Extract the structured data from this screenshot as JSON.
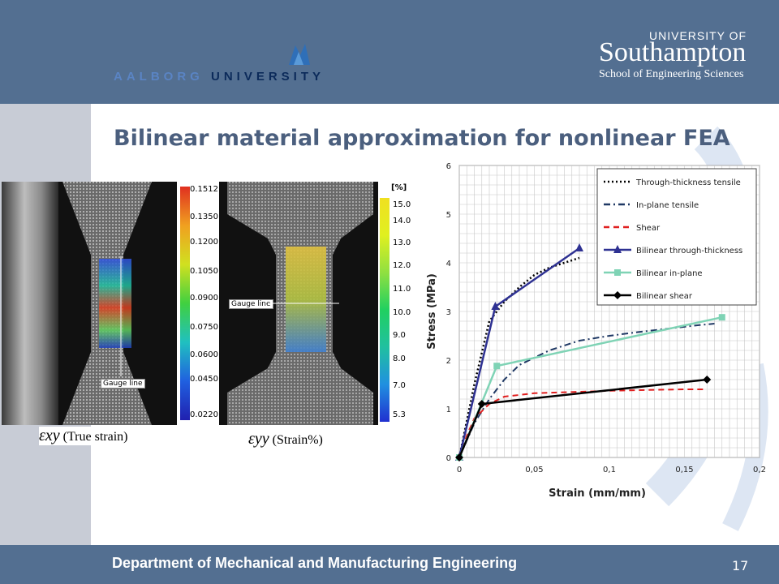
{
  "header": {
    "aalborg_text_1": "AALBORG",
    "aalborg_text_2": "UNIVERSITY",
    "soton_top": "UNIVERSITY OF",
    "soton_main": "Southampton",
    "soton_sub": "School of Engineering Sciences"
  },
  "slide": {
    "title": "Bilinear material approximation for nonlinear FEA",
    "footer": "Department of Mechanical and Manufacturing Engineering",
    "page_number": "17"
  },
  "figure_left": {
    "gauge_label": "Gauge line",
    "caption_symbol": "εxy",
    "caption_text": "(True strain)",
    "colorbar_labels": [
      "0.1512",
      "0.1350",
      "0.1200",
      "0.1050",
      "0.0900",
      "0.0750",
      "0.0600",
      "0.0450",
      "0.0220"
    ]
  },
  "figure_mid": {
    "gauge_label": "Gauge line",
    "unit_label": "[%]",
    "caption_symbol": "εyy",
    "caption_text": "(Strain%)",
    "colorbar_labels": [
      "15.0",
      "14.0",
      "13.0",
      "12.0",
      "11.0",
      "10.0",
      "9.0",
      "8.0",
      "7.0",
      "5.3"
    ]
  },
  "chart_data": {
    "type": "line",
    "title": "",
    "xlabel": "Strain (mm/mm)",
    "ylabel": "Stress (MPa)",
    "xlim": [
      0,
      0.2
    ],
    "ylim": [
      0,
      6
    ],
    "xticks": [
      "0",
      "0,05",
      "0,1",
      "0,15",
      "0,2"
    ],
    "yticks": [
      "0",
      "1",
      "2",
      "3",
      "4",
      "5",
      "6"
    ],
    "grid": true,
    "legend_position": "top-right",
    "series": [
      {
        "name": "Through-thickness tensile",
        "style": "dotted",
        "color": "#000000",
        "marker": "none",
        "x": [
          0,
          0.01,
          0.02,
          0.03,
          0.04,
          0.05,
          0.06,
          0.07,
          0.08
        ],
        "y": [
          0,
          1.5,
          2.8,
          3.2,
          3.5,
          3.75,
          3.9,
          4.0,
          4.1
        ]
      },
      {
        "name": "In-plane tensile",
        "style": "dashdot",
        "color": "#1f3864",
        "marker": "none",
        "x": [
          0,
          0.01,
          0.02,
          0.03,
          0.04,
          0.06,
          0.08,
          0.1,
          0.12,
          0.14,
          0.16,
          0.17
        ],
        "y": [
          0,
          0.7,
          1.2,
          1.6,
          1.9,
          2.2,
          2.4,
          2.5,
          2.58,
          2.65,
          2.72,
          2.75
        ]
      },
      {
        "name": "Shear",
        "style": "dashed",
        "color": "#e02020",
        "marker": "none",
        "x": [
          0,
          0.005,
          0.01,
          0.02,
          0.03,
          0.05,
          0.08,
          0.1,
          0.13,
          0.15,
          0.165
        ],
        "y": [
          0,
          0.45,
          0.8,
          1.1,
          1.25,
          1.32,
          1.35,
          1.37,
          1.39,
          1.4,
          1.4
        ]
      },
      {
        "name": "Bilinear through-thickness",
        "style": "solid",
        "color": "#2e3192",
        "marker": "triangle",
        "x": [
          0,
          0.024,
          0.08
        ],
        "y": [
          0,
          3.1,
          4.3
        ]
      },
      {
        "name": "Bilinear in-plane",
        "style": "solid",
        "color": "#7fd3b5",
        "marker": "square",
        "x": [
          0,
          0.025,
          0.175
        ],
        "y": [
          0,
          1.88,
          2.88
        ]
      },
      {
        "name": "Bilinear shear",
        "style": "solid",
        "color": "#000000",
        "marker": "diamond",
        "x": [
          0,
          0.015,
          0.165
        ],
        "y": [
          0,
          1.1,
          1.6
        ]
      }
    ]
  },
  "colors": {
    "header_bg": "#536f91",
    "title": "#4b5f7e"
  }
}
